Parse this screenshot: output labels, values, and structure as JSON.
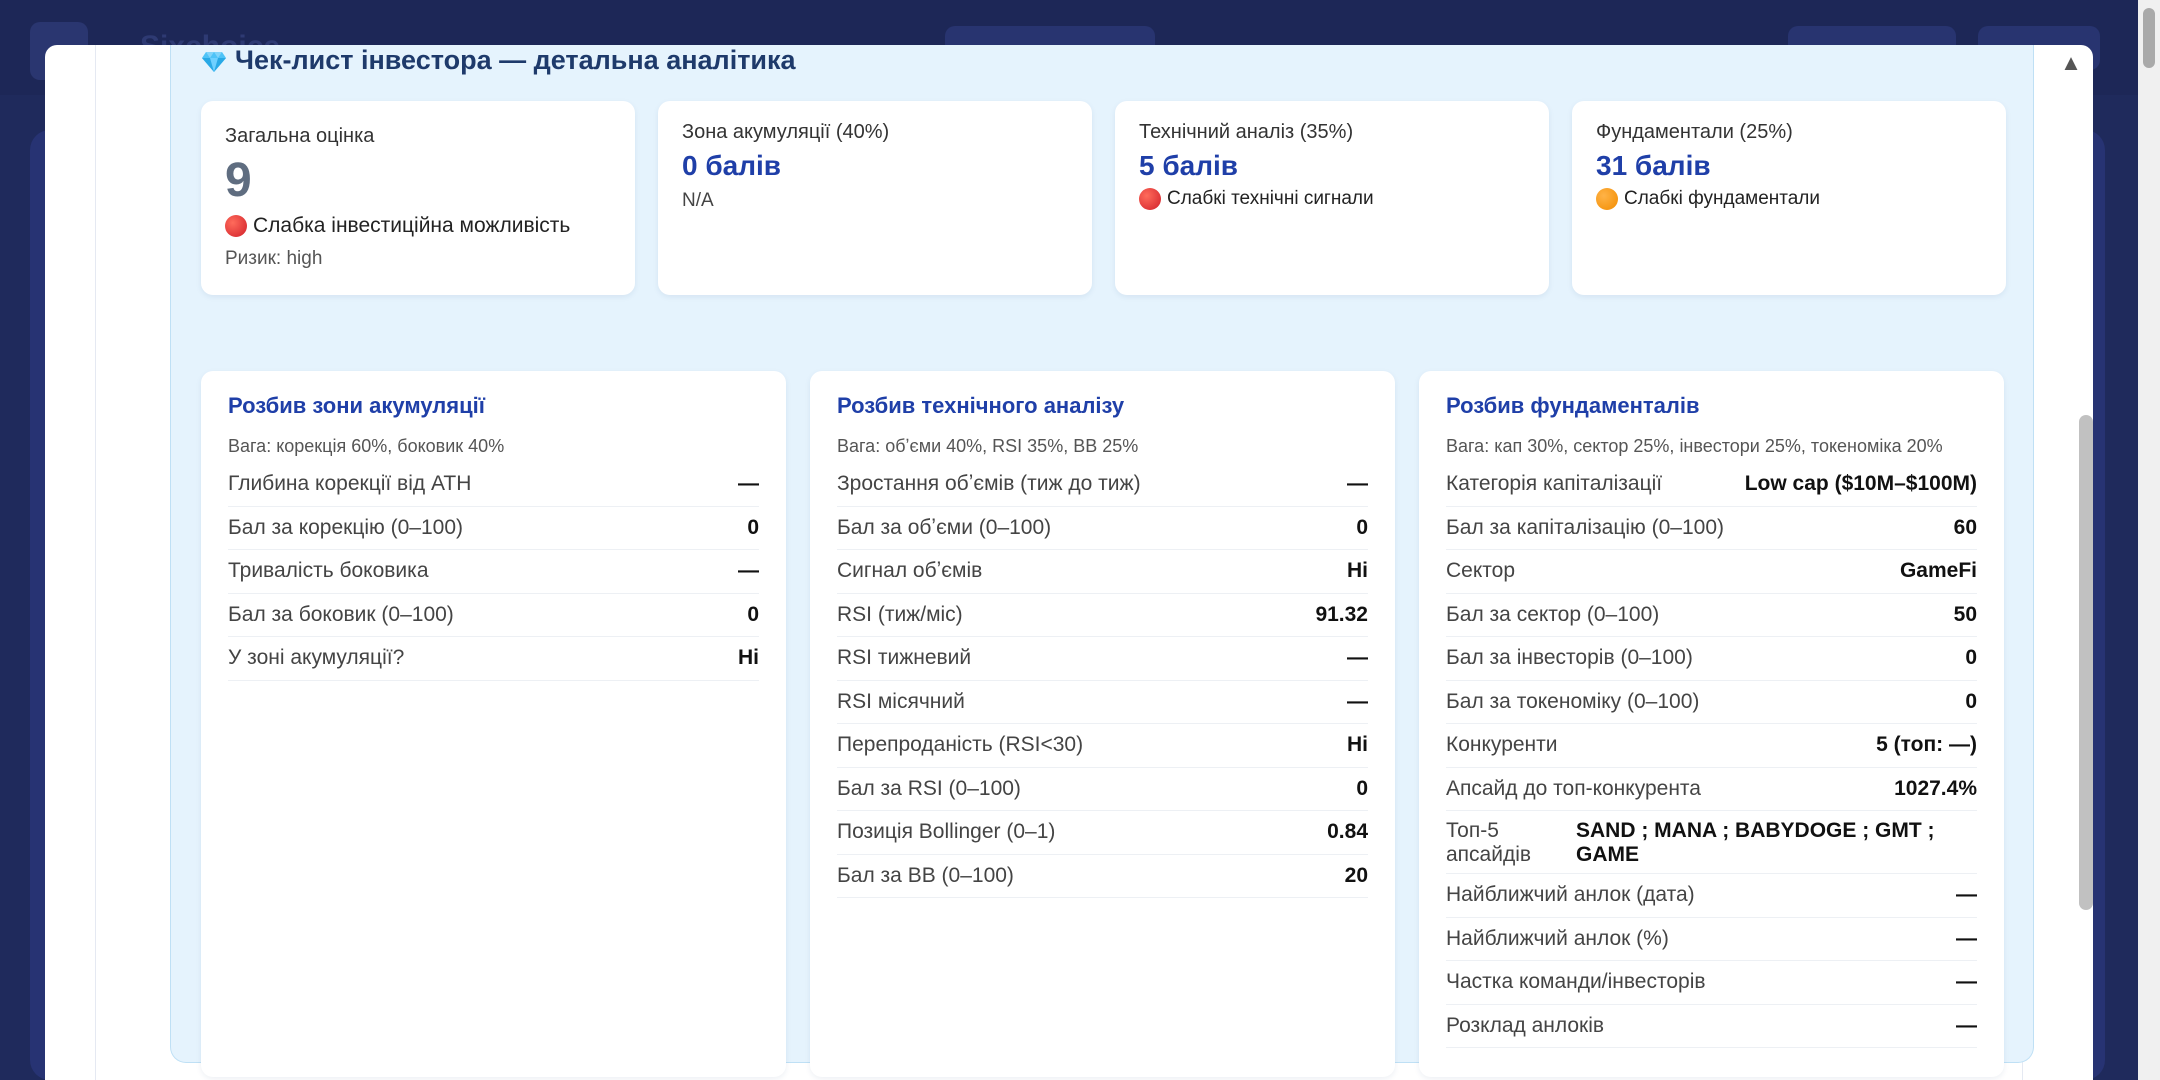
{
  "background": {
    "app_name": "Sixchoice"
  },
  "modal": {
    "close_icon": "chevron-up-icon"
  },
  "section": {
    "icon": "gem-icon",
    "title": "Чек-лист інвестора — детальна аналітика"
  },
  "summary": {
    "overall": {
      "label": "Загальна оцінка",
      "score": "9",
      "status": "Слабка інвестиційна можливість",
      "status_color": "#d1202a",
      "risk": "Ризик: high"
    },
    "accumulation": {
      "label": "Зона акумуляції (40%)",
      "value": "0 балів",
      "note": "N/A"
    },
    "technical": {
      "label": "Технічний аналіз (35%)",
      "value": "5 балів",
      "status": "Слабкі технічні сигнали",
      "status_color": "#d1202a"
    },
    "fundamentals": {
      "label": "Фундаментали (25%)",
      "value": "31 балів",
      "status": "Слабкі фундаментали",
      "status_color": "#f28c00"
    }
  },
  "accumulation_breakdown": {
    "title": "Розбив зони акумуляції",
    "weights": "Вага: корекція 60%, боковик 40%",
    "rows": [
      {
        "label": "Глибина корекції від ATH",
        "value": "—"
      },
      {
        "label": "Бал за корекцію (0–100)",
        "value": "0"
      },
      {
        "label": "Тривалість боковика",
        "value": "—"
      },
      {
        "label": "Бал за боковик (0–100)",
        "value": "0"
      },
      {
        "label": "У зоні акумуляції?",
        "value": "Ні"
      }
    ]
  },
  "technical_breakdown": {
    "title": "Розбив технічного аналізу",
    "weights": "Вага: обʼєми 40%, RSI 35%, BB 25%",
    "rows": [
      {
        "label": "Зростання обʼємів (тиж до тиж)",
        "value": "—"
      },
      {
        "label": "Бал за обʼєми (0–100)",
        "value": "0"
      },
      {
        "label": "Сигнал обʼємів",
        "value": "Ні"
      },
      {
        "label": "RSI (тиж/міс)",
        "value": "91.32"
      },
      {
        "label": "RSI тижневий",
        "value": "—"
      },
      {
        "label": "RSI місячний",
        "value": "—"
      },
      {
        "label": "Перепроданість (RSI<30)",
        "value": "Ні"
      },
      {
        "label": "Бал за RSI (0–100)",
        "value": "0"
      },
      {
        "label": "Позиція Bollinger (0–1)",
        "value": "0.84"
      },
      {
        "label": "Бал за BB (0–100)",
        "value": "20"
      }
    ]
  },
  "fundamentals_breakdown": {
    "title": "Розбив фундаменталів",
    "weights": "Вага: кап 30%, сектор 25%, інвестори 25%, токеноміка 20%",
    "rows": [
      {
        "label": "Категорія капіталізації",
        "value": "Low cap ($10M–$100M)"
      },
      {
        "label": "Бал за капіталізацію (0–100)",
        "value": "60"
      },
      {
        "label": "Сектор",
        "value": "GameFi"
      },
      {
        "label": "Бал за сектор (0–100)",
        "value": "50"
      },
      {
        "label": "Бал за інвесторів (0–100)",
        "value": "0"
      },
      {
        "label": "Бал за токеноміку (0–100)",
        "value": "0"
      },
      {
        "label": "Конкуренти",
        "value": "5 (топ: —)"
      },
      {
        "label": "Апсайд до топ-конкурента",
        "value": "1027.4%"
      }
    ],
    "top5": {
      "label": "Топ-5 апсайдів",
      "value": "SAND ; MANA ; BABYDOGE ; GMT ; GAME"
    },
    "rows_after": [
      {
        "label": "Найближчий анлок (дата)",
        "value": "—"
      },
      {
        "label": "Найближчий анлок (%)",
        "value": "—"
      },
      {
        "label": "Частка команди/інвесторів",
        "value": "—"
      },
      {
        "label": "Розклад анлоків",
        "value": "—"
      }
    ]
  }
}
